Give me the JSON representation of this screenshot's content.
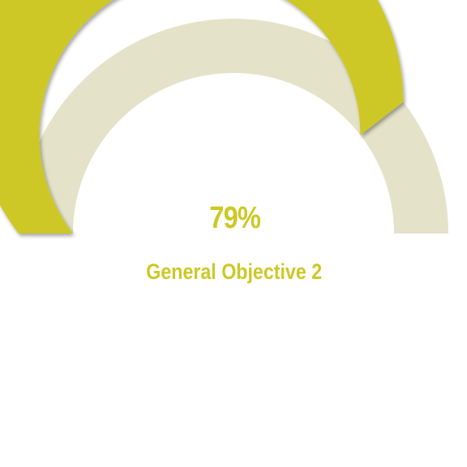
{
  "chart_data": {
    "type": "gauge",
    "value": 79,
    "max": 100,
    "value_label": "79%",
    "label": "General Objective 2",
    "colors": {
      "fill": "#cdc825",
      "track": "#e4e3c9",
      "text": "#cdc825"
    }
  }
}
